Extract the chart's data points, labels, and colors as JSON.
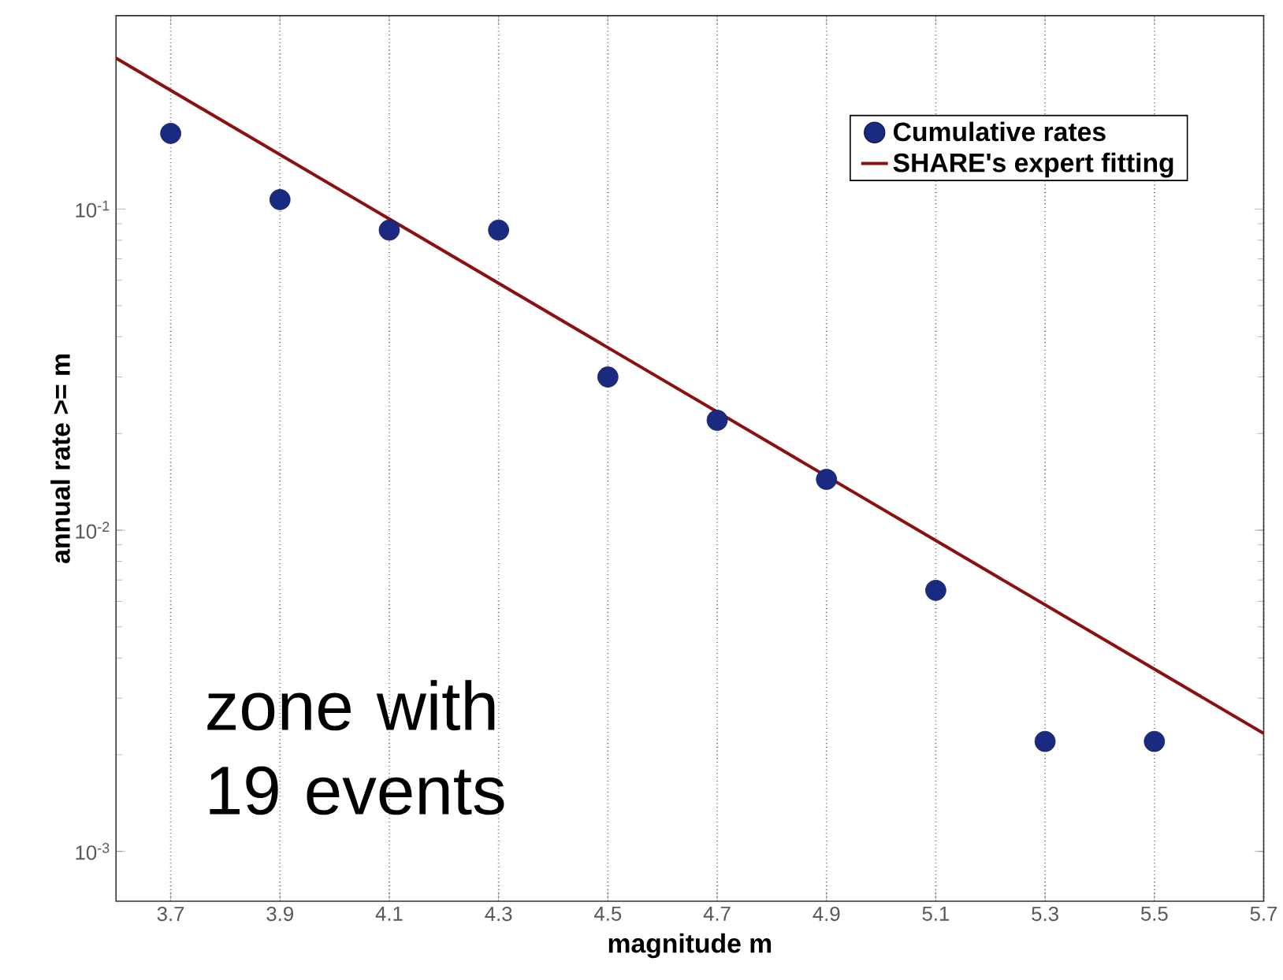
{
  "chart_data": {
    "type": "scatter",
    "xlabel": "magnitude m",
    "ylabel": "annual rate >= m",
    "annotations": [
      "zone with 19 events"
    ],
    "series": [
      {
        "name": "Cumulative rates",
        "color": "#1a2a80",
        "x": [
          3.7,
          3.9,
          4.1,
          4.3,
          4.5,
          4.7,
          4.9,
          5.1,
          5.3,
          5.5
        ],
        "values": [
          0.172,
          0.107,
          0.086,
          0.086,
          0.03,
          0.022,
          0.0144,
          0.0065,
          0.0022,
          0.0022
        ]
      },
      {
        "name": "SHARE's expert fitting",
        "type": "line",
        "color": "#8b1010",
        "x": [
          3.6,
          5.7
        ],
        "values": [
          0.295,
          0.00233
        ]
      }
    ],
    "xlim": [
      3.6,
      5.7
    ],
    "xticks": [
      3.7,
      3.9,
      4.1,
      4.3,
      4.5,
      4.7,
      4.9,
      5.1,
      5.3,
      5.5,
      5.7
    ],
    "ylim": [
      0.0007,
      0.4
    ],
    "yticks": [
      {
        "value": 0.001,
        "label": "10$^{-3}$"
      },
      {
        "value": 0.01,
        "label": "10$^{-2}$"
      },
      {
        "value": 0.1,
        "label": "10$^{-1}$"
      }
    ],
    "log": "y",
    "grid": "x",
    "legend": "top right"
  }
}
